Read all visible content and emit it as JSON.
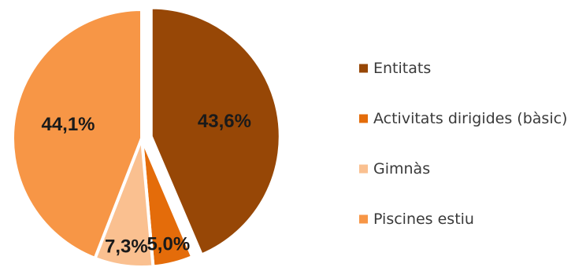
{
  "chart_data": {
    "type": "pie",
    "categories": [
      "Entitats",
      "Activitats dirigides (bàsic)",
      "Gimnàs",
      "Piscines estiu"
    ],
    "values": [
      43.6,
      5.0,
      7.3,
      44.1
    ],
    "labels": [
      "43,6%",
      "5,0%",
      "7,3%",
      "44,1%"
    ],
    "colors": [
      "#974706",
      "#E46C0A",
      "#FAC090",
      "#F79646"
    ],
    "exploded": [
      true,
      false,
      false,
      false
    ],
    "legend_position": "right"
  }
}
